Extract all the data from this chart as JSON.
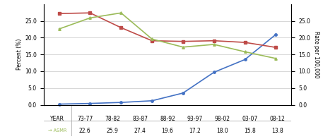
{
  "years": [
    "73-77",
    "78-82",
    "83-87",
    "88-92",
    "93-97",
    "98-02",
    "03-07",
    "08-12"
  ],
  "blue_values": [
    0.2,
    0.4,
    0.7,
    1.2,
    3.5,
    9.7,
    13.5,
    21.0
  ],
  "red_values": [
    27.2,
    27.4,
    23.0,
    19.1,
    18.9,
    19.1,
    18.6,
    17.1
  ],
  "green_values": [
    22.6,
    25.9,
    27.4,
    19.6,
    17.2,
    18.0,
    15.8,
    13.8
  ],
  "blue_color": "#4472C4",
  "red_color": "#BE4B48",
  "green_color": "#9BBB59",
  "left_ylabel": "Percent (%)",
  "right_ylabel": "Rate per 100,000",
  "ylim": [
    0,
    30
  ],
  "yticks": [
    0.0,
    5.0,
    10.0,
    15.0,
    20.0,
    25.0
  ],
  "table_years": [
    "73-77",
    "78-82",
    "83-87",
    "88-92",
    "93-97",
    "98-02",
    "03-07",
    "08-12"
  ],
  "table_asmr": [
    "22.6",
    "25.9",
    "27.4",
    "19.6",
    "17.2",
    "18.0",
    "15.8",
    "13.8"
  ],
  "bg_color": "#FFFFFF",
  "grid_color": "#C8C8C8",
  "table_bg": "#F2F2F2"
}
